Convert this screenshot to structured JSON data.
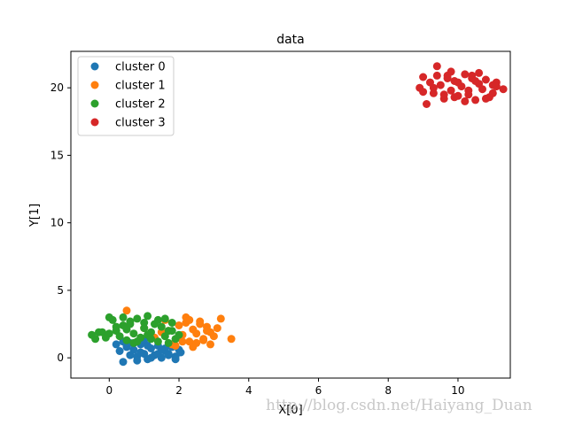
{
  "chart_data": {
    "type": "scatter",
    "title": "data",
    "xlabel": "X[0]",
    "ylabel": "Y[1]",
    "xlim": [
      -1.1,
      11.5
    ],
    "ylim": [
      -1.5,
      22.7
    ],
    "x_ticks": [
      0,
      2,
      4,
      6,
      8,
      10
    ],
    "y_ticks": [
      0,
      5,
      10,
      15,
      20
    ],
    "grid": false,
    "legend_position": "top-left",
    "series": [
      {
        "name": "cluster 0",
        "color": "#1f77b4",
        "x": [
          0.3,
          0.4,
          0.5,
          0.6,
          0.7,
          0.8,
          0.9,
          1.0,
          1.1,
          1.2,
          1.3,
          1.4,
          1.5,
          1.6,
          1.7,
          1.8,
          1.9,
          2.0,
          0.4,
          0.6,
          0.9,
          1.1,
          1.4,
          1.6,
          1.9,
          0.2,
          0.8,
          1.2,
          1.7,
          2.05,
          0.5,
          1.0,
          1.5
        ],
        "y": [
          0.5,
          -0.3,
          0.8,
          0.2,
          0.6,
          0.1,
          1.0,
          0.3,
          -0.1,
          0.7,
          0.2,
          0.9,
          0.0,
          0.5,
          0.3,
          0.8,
          0.1,
          0.6,
          1.2,
          1.1,
          0.4,
          0.9,
          0.3,
          0.7,
          -0.1,
          1.0,
          -0.2,
          0.0,
          0.2,
          0.4,
          0.9,
          1.3,
          0.6
        ]
      },
      {
        "name": "cluster 1",
        "color": "#ff7f0e",
        "x": [
          0.5,
          1.0,
          1.3,
          1.6,
          1.8,
          2.0,
          2.1,
          2.2,
          2.3,
          2.4,
          2.5,
          2.6,
          2.7,
          2.8,
          2.9,
          3.0,
          3.2,
          3.5,
          1.9,
          2.2,
          2.5,
          2.8,
          2.0,
          2.3,
          2.6,
          1.7,
          2.4,
          2.7,
          3.1,
          2.1,
          1.5,
          2.9
        ],
        "y": [
          3.5,
          2.2,
          1.5,
          2.8,
          1.0,
          2.4,
          1.7,
          3.0,
          1.2,
          2.1,
          1.8,
          2.7,
          1.4,
          2.3,
          1.9,
          1.6,
          2.9,
          1.4,
          0.9,
          2.6,
          1.1,
          2.0,
          1.5,
          2.8,
          2.5,
          2.0,
          0.8,
          1.3,
          2.2,
          1.2,
          1.9,
          1.0
        ]
      },
      {
        "name": "cluster 2",
        "color": "#2ca02c",
        "x": [
          -0.5,
          -0.4,
          -0.2,
          0.0,
          0.1,
          0.2,
          0.3,
          0.4,
          0.5,
          0.6,
          0.7,
          0.8,
          0.9,
          1.0,
          1.1,
          1.2,
          1.3,
          1.4,
          1.5,
          1.6,
          1.7,
          1.8,
          1.9,
          2.0,
          -0.1,
          0.2,
          0.5,
          0.8,
          1.1,
          1.4,
          1.7,
          0.0,
          0.6,
          1.2,
          1.8,
          0.4,
          1.0,
          1.6,
          -0.3,
          0.7
        ],
        "y": [
          1.7,
          1.4,
          1.9,
          3.0,
          2.8,
          2.0,
          1.6,
          2.4,
          1.3,
          2.7,
          1.8,
          2.9,
          1.5,
          2.2,
          3.1,
          1.9,
          2.5,
          1.2,
          2.3,
          1.6,
          2.0,
          2.6,
          1.4,
          1.7,
          1.5,
          2.3,
          2.1,
          1.2,
          1.7,
          2.8,
          1.1,
          1.8,
          2.5,
          1.4,
          2.0,
          3.0,
          2.6,
          2.9,
          1.9,
          1.1
        ]
      },
      {
        "name": "cluster 3",
        "color": "#d62728",
        "x": [
          8.9,
          9.0,
          9.1,
          9.2,
          9.3,
          9.4,
          9.5,
          9.6,
          9.7,
          9.8,
          9.9,
          10.0,
          10.1,
          10.2,
          10.3,
          10.4,
          10.5,
          10.6,
          10.7,
          10.8,
          10.9,
          11.0,
          11.1,
          11.3,
          9.0,
          9.4,
          9.8,
          10.2,
          10.6,
          11.0,
          9.6,
          10.0,
          10.4,
          10.8,
          9.3,
          9.9,
          10.5,
          11.1,
          9.7,
          10.3
        ],
        "y": [
          20.0,
          20.8,
          18.8,
          20.4,
          19.6,
          21.6,
          20.2,
          19.2,
          20.9,
          19.8,
          20.5,
          19.4,
          20.1,
          21.0,
          19.5,
          20.7,
          19.1,
          20.3,
          19.9,
          20.6,
          19.3,
          20.2,
          20.4,
          19.9,
          19.7,
          20.9,
          21.2,
          19.0,
          21.1,
          19.6,
          19.5,
          20.4,
          20.9,
          19.2,
          20.0,
          19.3,
          20.5,
          20.1,
          20.7,
          19.8
        ]
      }
    ]
  },
  "watermark": "http://blog.csdn.net/Haiyang_Duan"
}
